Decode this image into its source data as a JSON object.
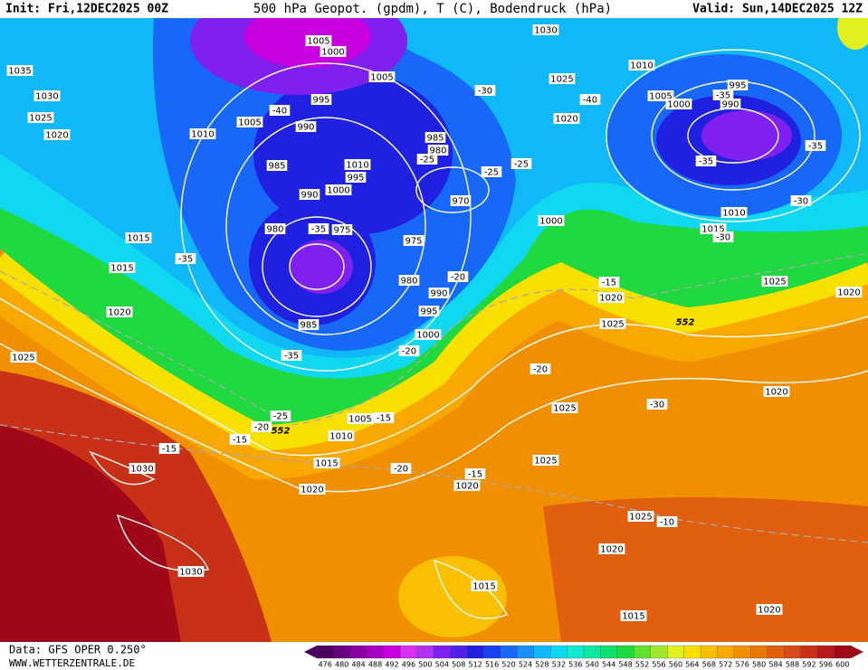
{
  "header": {
    "init": "Init: Fri,12DEC2025 00Z",
    "title": "500 hPa Geopot. (gpdm), T (C), Bodendruck (hPa)",
    "valid": "Valid: Sun,14DEC2025 12Z"
  },
  "footer": {
    "source": "Data: GFS OPER 0.250°",
    "url": "WWW.WETTERZENTRALE.DE"
  },
  "colorbar": {
    "ticks": [
      476,
      480,
      484,
      488,
      492,
      496,
      500,
      504,
      508,
      512,
      516,
      520,
      524,
      528,
      532,
      536,
      540,
      544,
      548,
      552,
      556,
      560,
      564,
      568,
      572,
      576,
      580,
      584,
      588,
      592,
      596,
      600
    ],
    "colors": [
      "#4b0060",
      "#6a007f",
      "#8a00a0",
      "#a800c0",
      "#c800e0",
      "#d830f0",
      "#b030f0",
      "#8020f0",
      "#5020e8",
      "#2020e0",
      "#1840f0",
      "#1868f8",
      "#1890f8",
      "#10b8f8",
      "#10d8f0",
      "#10e8d0",
      "#10e8a0",
      "#10e070",
      "#20d840",
      "#60e030",
      "#a0e830",
      "#e0f020",
      "#f8e000",
      "#f8c000",
      "#f8a800",
      "#f09000",
      "#e87800",
      "#e06010",
      "#d84818",
      "#c83018",
      "#b81818",
      "#a00818"
    ]
  },
  "map": {
    "pressure_labels": [
      "1005",
      "1000",
      "1035",
      "1030",
      "1025",
      "1020",
      "1005",
      "995",
      "990",
      "1005",
      "1010",
      "985",
      "1010",
      "995",
      "990",
      "1000",
      "985",
      "980",
      "970",
      "980",
      "975",
      "975",
      "1015",
      "1015",
      "1020",
      "980",
      "990",
      "995",
      "985",
      "1000",
      "1025",
      "1030",
      "1010",
      "1025",
      "1020",
      "1005",
      "1000",
      "995",
      "990",
      "1000",
      "1010",
      "1015",
      "1025",
      "1020",
      "1020",
      "1025",
      "1020",
      "1025",
      "1005",
      "1010",
      "1015",
      "1020",
      "1030",
      "1030",
      "1025",
      "1020",
      "1025",
      "1020",
      "1015",
      "1015",
      "1020"
    ],
    "temperature_labels": [
      "-40",
      "-35",
      "-35",
      "-35",
      "-30",
      "-40",
      "-35",
      "-35",
      "-35",
      "-30",
      "-30",
      "-25",
      "-25",
      "-25",
      "-20",
      "-20",
      "-15",
      "-20",
      "-30",
      "-25",
      "-20",
      "-15",
      "-15",
      "-15",
      "-20",
      "-15",
      "-10"
    ],
    "height_labels": [
      "552",
      "552"
    ]
  }
}
